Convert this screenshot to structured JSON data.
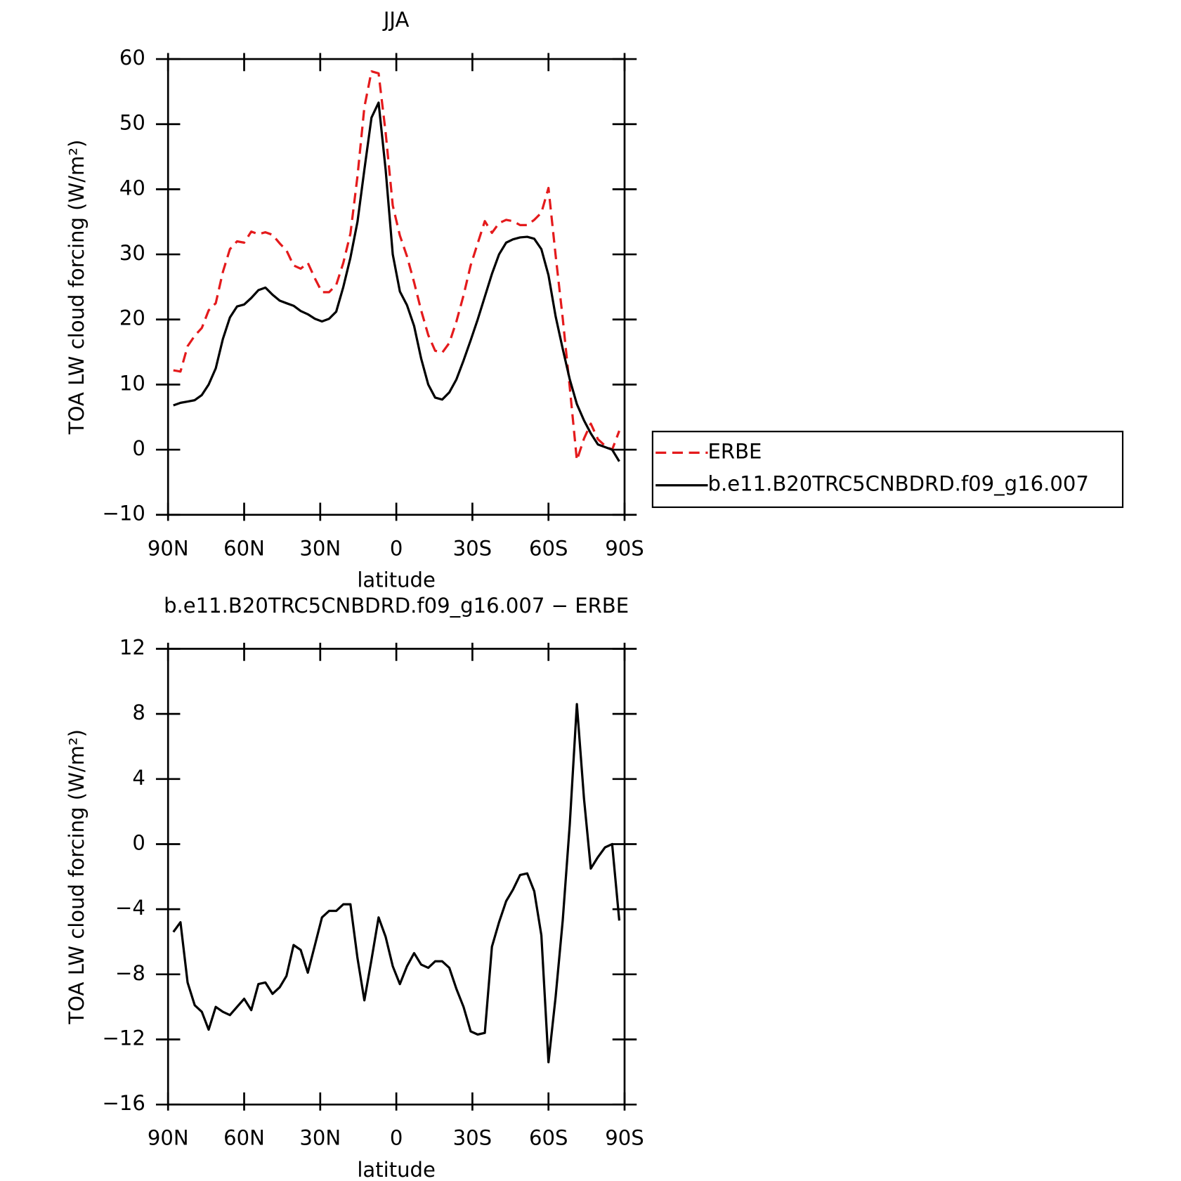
{
  "chart_data": [
    {
      "type": "line",
      "title": "JJA",
      "y_label": "TOA LW cloud forcing (W/m²)",
      "x_label": "latitude",
      "x": [
        87.9,
        85.1,
        82.3,
        79.5,
        76.7,
        74.0,
        71.2,
        68.4,
        65.6,
        62.8,
        60.0,
        57.2,
        54.4,
        51.6,
        48.8,
        46.0,
        43.3,
        40.5,
        37.7,
        34.9,
        32.1,
        29.3,
        26.5,
        23.7,
        20.9,
        18.1,
        15.3,
        12.6,
        9.8,
        7.0,
        4.2,
        1.4,
        -1.4,
        -4.2,
        -7.0,
        -9.8,
        -12.6,
        -15.3,
        -18.1,
        -20.9,
        -23.7,
        -26.5,
        -29.3,
        -32.1,
        -34.9,
        -37.7,
        -40.5,
        -43.3,
        -46.0,
        -48.8,
        -51.6,
        -54.4,
        -57.2,
        -60.0,
        -62.8,
        -65.6,
        -68.4,
        -71.2,
        -74.0,
        -76.7,
        -79.5,
        -82.3,
        -85.1,
        -87.9
      ],
      "series": [
        {
          "name": "ERBE",
          "color": "#e41a1c",
          "style": "dashed",
          "values": [
            12.2,
            12.0,
            15.9,
            17.5,
            18.7,
            21.4,
            22.5,
            27.3,
            30.8,
            32.0,
            31.8,
            33.5,
            33.1,
            33.4,
            33.0,
            31.7,
            30.6,
            28.3,
            27.8,
            28.7,
            26.3,
            24.2,
            24.2,
            25.3,
            28.7,
            33.2,
            42.0,
            52.6,
            58.1,
            57.8,
            48.7,
            37.5,
            32.9,
            29.7,
            25.7,
            21.4,
            17.6,
            15.2,
            14.9,
            16.4,
            19.7,
            23.7,
            28.3,
            31.7,
            35.1,
            33.3,
            34.8,
            35.3,
            35.1,
            34.5,
            34.5,
            35.3,
            36.4,
            40.2,
            29.9,
            20.2,
            9.6,
            -1.6,
            1.7,
            4.0,
            1.6,
            0.6,
            0.0,
            2.9
          ]
        },
        {
          "name": "b.e11.B20TRC5CNBDRD.f09_g16.007",
          "color": "#000000",
          "style": "solid",
          "values": [
            6.8,
            7.2,
            7.4,
            7.6,
            8.4,
            10.0,
            12.5,
            17.0,
            20.3,
            22.0,
            22.3,
            23.3,
            24.5,
            24.9,
            23.8,
            22.9,
            22.5,
            22.1,
            21.3,
            20.8,
            20.1,
            19.7,
            20.1,
            21.2,
            25.0,
            29.5,
            35.0,
            43.0,
            51.0,
            53.3,
            43.0,
            30.0,
            24.3,
            22.2,
            19.0,
            14.0,
            10.0,
            8.0,
            7.7,
            8.8,
            10.8,
            13.7,
            16.8,
            20.0,
            23.5,
            27.0,
            30.0,
            31.8,
            32.3,
            32.6,
            32.7,
            32.4,
            30.8,
            26.8,
            20.5,
            15.5,
            10.8,
            7.0,
            4.5,
            2.5,
            0.8,
            0.4,
            0.0,
            -1.8
          ]
        }
      ],
      "legend": "right",
      "xlim": [
        90,
        -90
      ],
      "xticks": [
        {
          "value": 90,
          "label": "90N"
        },
        {
          "value": 60,
          "label": "60N"
        },
        {
          "value": 30,
          "label": "30N"
        },
        0,
        {
          "value": -30,
          "label": "30S"
        },
        {
          "value": -60,
          "label": "60S"
        },
        {
          "value": -90,
          "label": "90S"
        }
      ],
      "ylim": [
        -10,
        60
      ],
      "yticks": [
        {
          "value": -10,
          "label": "−10"
        },
        0,
        10,
        20,
        30,
        40,
        50,
        60
      ]
    },
    {
      "type": "line",
      "title": "b.e11.B20TRC5CNBDRD.f09_g16.007 − ERBE",
      "y_label": "TOA LW cloud forcing (W/m²)",
      "x_label": "latitude",
      "x": [
        87.9,
        85.1,
        82.3,
        79.5,
        76.7,
        74.0,
        71.2,
        68.4,
        65.6,
        62.8,
        60.0,
        57.2,
        54.4,
        51.6,
        48.8,
        46.0,
        43.3,
        40.5,
        37.7,
        34.9,
        32.1,
        29.3,
        26.5,
        23.7,
        20.9,
        18.1,
        15.3,
        12.6,
        9.8,
        7.0,
        4.2,
        1.4,
        -1.4,
        -4.2,
        -7.0,
        -9.8,
        -12.6,
        -15.3,
        -18.1,
        -20.9,
        -23.7,
        -26.5,
        -29.3,
        -32.1,
        -34.9,
        -37.7,
        -40.5,
        -43.3,
        -46.0,
        -48.8,
        -51.6,
        -54.4,
        -57.2,
        -60.0,
        -62.8,
        -65.6,
        -68.4,
        -71.2,
        -74.0,
        -76.7,
        -79.5,
        -82.3,
        -85.1,
        -87.9
      ],
      "color": "#000000",
      "values": [
        -5.4,
        -4.8,
        -8.5,
        -9.9,
        -10.3,
        -11.4,
        -10.0,
        -10.3,
        -10.5,
        -10.0,
        -9.5,
        -10.2,
        -8.6,
        -8.5,
        -9.2,
        -8.8,
        -8.1,
        -6.2,
        -6.5,
        -7.9,
        -6.2,
        -4.5,
        -4.1,
        -4.1,
        -3.7,
        -3.7,
        -7.0,
        -9.6,
        -7.1,
        -4.5,
        -5.7,
        -7.5,
        -8.6,
        -7.5,
        -6.7,
        -7.4,
        -7.6,
        -7.2,
        -7.2,
        -7.6,
        -8.9,
        -10.0,
        -11.5,
        -11.7,
        -11.6,
        -6.3,
        -4.8,
        -3.5,
        -2.8,
        -1.9,
        -1.8,
        -2.9,
        -5.6,
        -13.4,
        -9.4,
        -4.7,
        1.2,
        8.6,
        2.8,
        -1.5,
        -0.8,
        -0.2,
        0.0,
        -4.7
      ],
      "xlim": [
        90,
        -90
      ],
      "xticks": [
        {
          "value": 90,
          "label": "90N"
        },
        {
          "value": 60,
          "label": "60N"
        },
        {
          "value": 30,
          "label": "30N"
        },
        0,
        {
          "value": -30,
          "label": "30S"
        },
        {
          "value": -60,
          "label": "60S"
        },
        {
          "value": -90,
          "label": "90S"
        }
      ],
      "ylim": [
        -16,
        12
      ],
      "yticks": [
        {
          "value": -16,
          "label": "−16"
        },
        {
          "value": -12,
          "label": "−12"
        },
        {
          "value": -8,
          "label": "−8"
        },
        {
          "value": -4,
          "label": "−4"
        },
        0,
        4,
        8,
        12
      ]
    }
  ]
}
